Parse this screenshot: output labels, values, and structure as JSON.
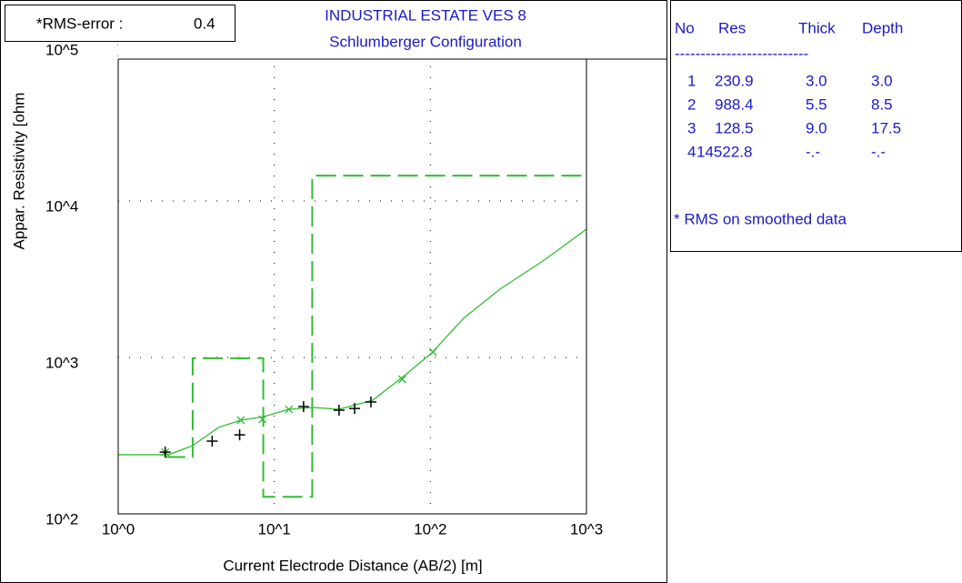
{
  "chart_data": {
    "type": "line",
    "title": "INDUSTRIAL ESTATE VES 8",
    "subtitle": "Schlumberger Configuration",
    "rms_label": "*RMS-error :",
    "rms_value": 0.4,
    "xlabel": "Current Electrode Distance (AB/2) [m]",
    "ylabel": "Appar. Resistivity [ohm",
    "log_x": true,
    "log_y": true,
    "grid": true,
    "xlim": [
      1,
      1000
    ],
    "ylim": [
      100,
      100000
    ],
    "xticks": [
      {
        "value": 1,
        "label": "10^0"
      },
      {
        "value": 10,
        "label": "10^1"
      },
      {
        "value": 100,
        "label": "10^2"
      },
      {
        "value": 1000,
        "label": "10^3"
      }
    ],
    "yticks": [
      {
        "value": 100,
        "label": "10^2"
      },
      {
        "value": 1000,
        "label": "10^3"
      },
      {
        "value": 10000,
        "label": "10^4"
      },
      {
        "value": 100000,
        "label": "10^5"
      }
    ],
    "observed": {
      "color": "#000000",
      "x": [
        2,
        4,
        6,
        15.4,
        26,
        32.7,
        41.6
      ],
      "values": [
        248,
        292,
        320,
        485,
        460,
        472,
        519
      ]
    },
    "smoothed": {
      "color": "#33bb33",
      "x": [
        2,
        6.1,
        8.4,
        12.4,
        66,
        104
      ],
      "values": [
        248,
        397,
        402,
        466,
        725,
        1083
      ]
    },
    "curve": {
      "color": "#33bb33",
      "x": [
        1,
        2.1,
        3,
        4.4,
        6.1,
        8.6,
        12.4,
        17.9,
        26,
        42.7,
        66,
        102,
        163,
        279,
        546,
        1000
      ],
      "values": [
        239,
        239,
        273,
        357,
        397,
        419,
        466,
        479,
        466,
        533,
        745,
        1069,
        1778,
        2729,
        4246,
        6607
      ]
    },
    "model_color": "#33bb33",
    "table": {
      "header": [
        "No",
        "Res",
        "Thick",
        "Depth"
      ],
      "rule": "--------------------------",
      "layers": [
        {
          "no": 1,
          "res": 230.9,
          "thick": {
            "value": 3,
            "label": "3.0"
          },
          "depth": {
            "value": 3,
            "label": "3.0"
          }
        },
        {
          "no": 2,
          "res": 988.4,
          "thick": {
            "value": 5.5,
            "label": "5.5"
          },
          "depth": {
            "value": 8.5,
            "label": "8.5"
          }
        },
        {
          "no": 3,
          "res": 128.5,
          "thick": {
            "value": 9,
            "label": "9.0"
          },
          "depth": {
            "value": 17.5,
            "label": "17.5"
          }
        },
        {
          "no": 4,
          "res": 14522.8,
          "thick": "-.-",
          "depth": "-.-"
        }
      ],
      "note": "* RMS on smoothed data"
    }
  }
}
